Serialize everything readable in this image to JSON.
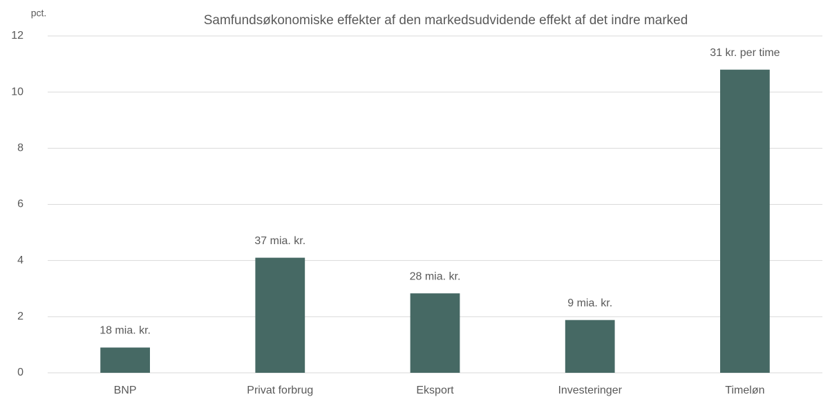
{
  "chart_data": {
    "type": "bar",
    "title": "Samfundsøkonomiske effekter af den markedsudvidende effekt af det indre marked",
    "y_label": "pct.",
    "categories": [
      "BNP",
      "Privat forbrug",
      "Eksport",
      "Investeringer",
      "Timeløn"
    ],
    "values": [
      0.9,
      4.1,
      2.83,
      1.88,
      10.8
    ],
    "annotations": [
      "18 mia. kr.",
      "37 mia. kr.",
      "28 mia. kr.",
      "9 mia. kr.",
      "31 kr. per time"
    ],
    "color": "#466964",
    "ylim": [
      0,
      12
    ],
    "yticks": [
      0,
      2,
      4,
      6,
      8,
      10,
      12
    ],
    "grid": true
  }
}
